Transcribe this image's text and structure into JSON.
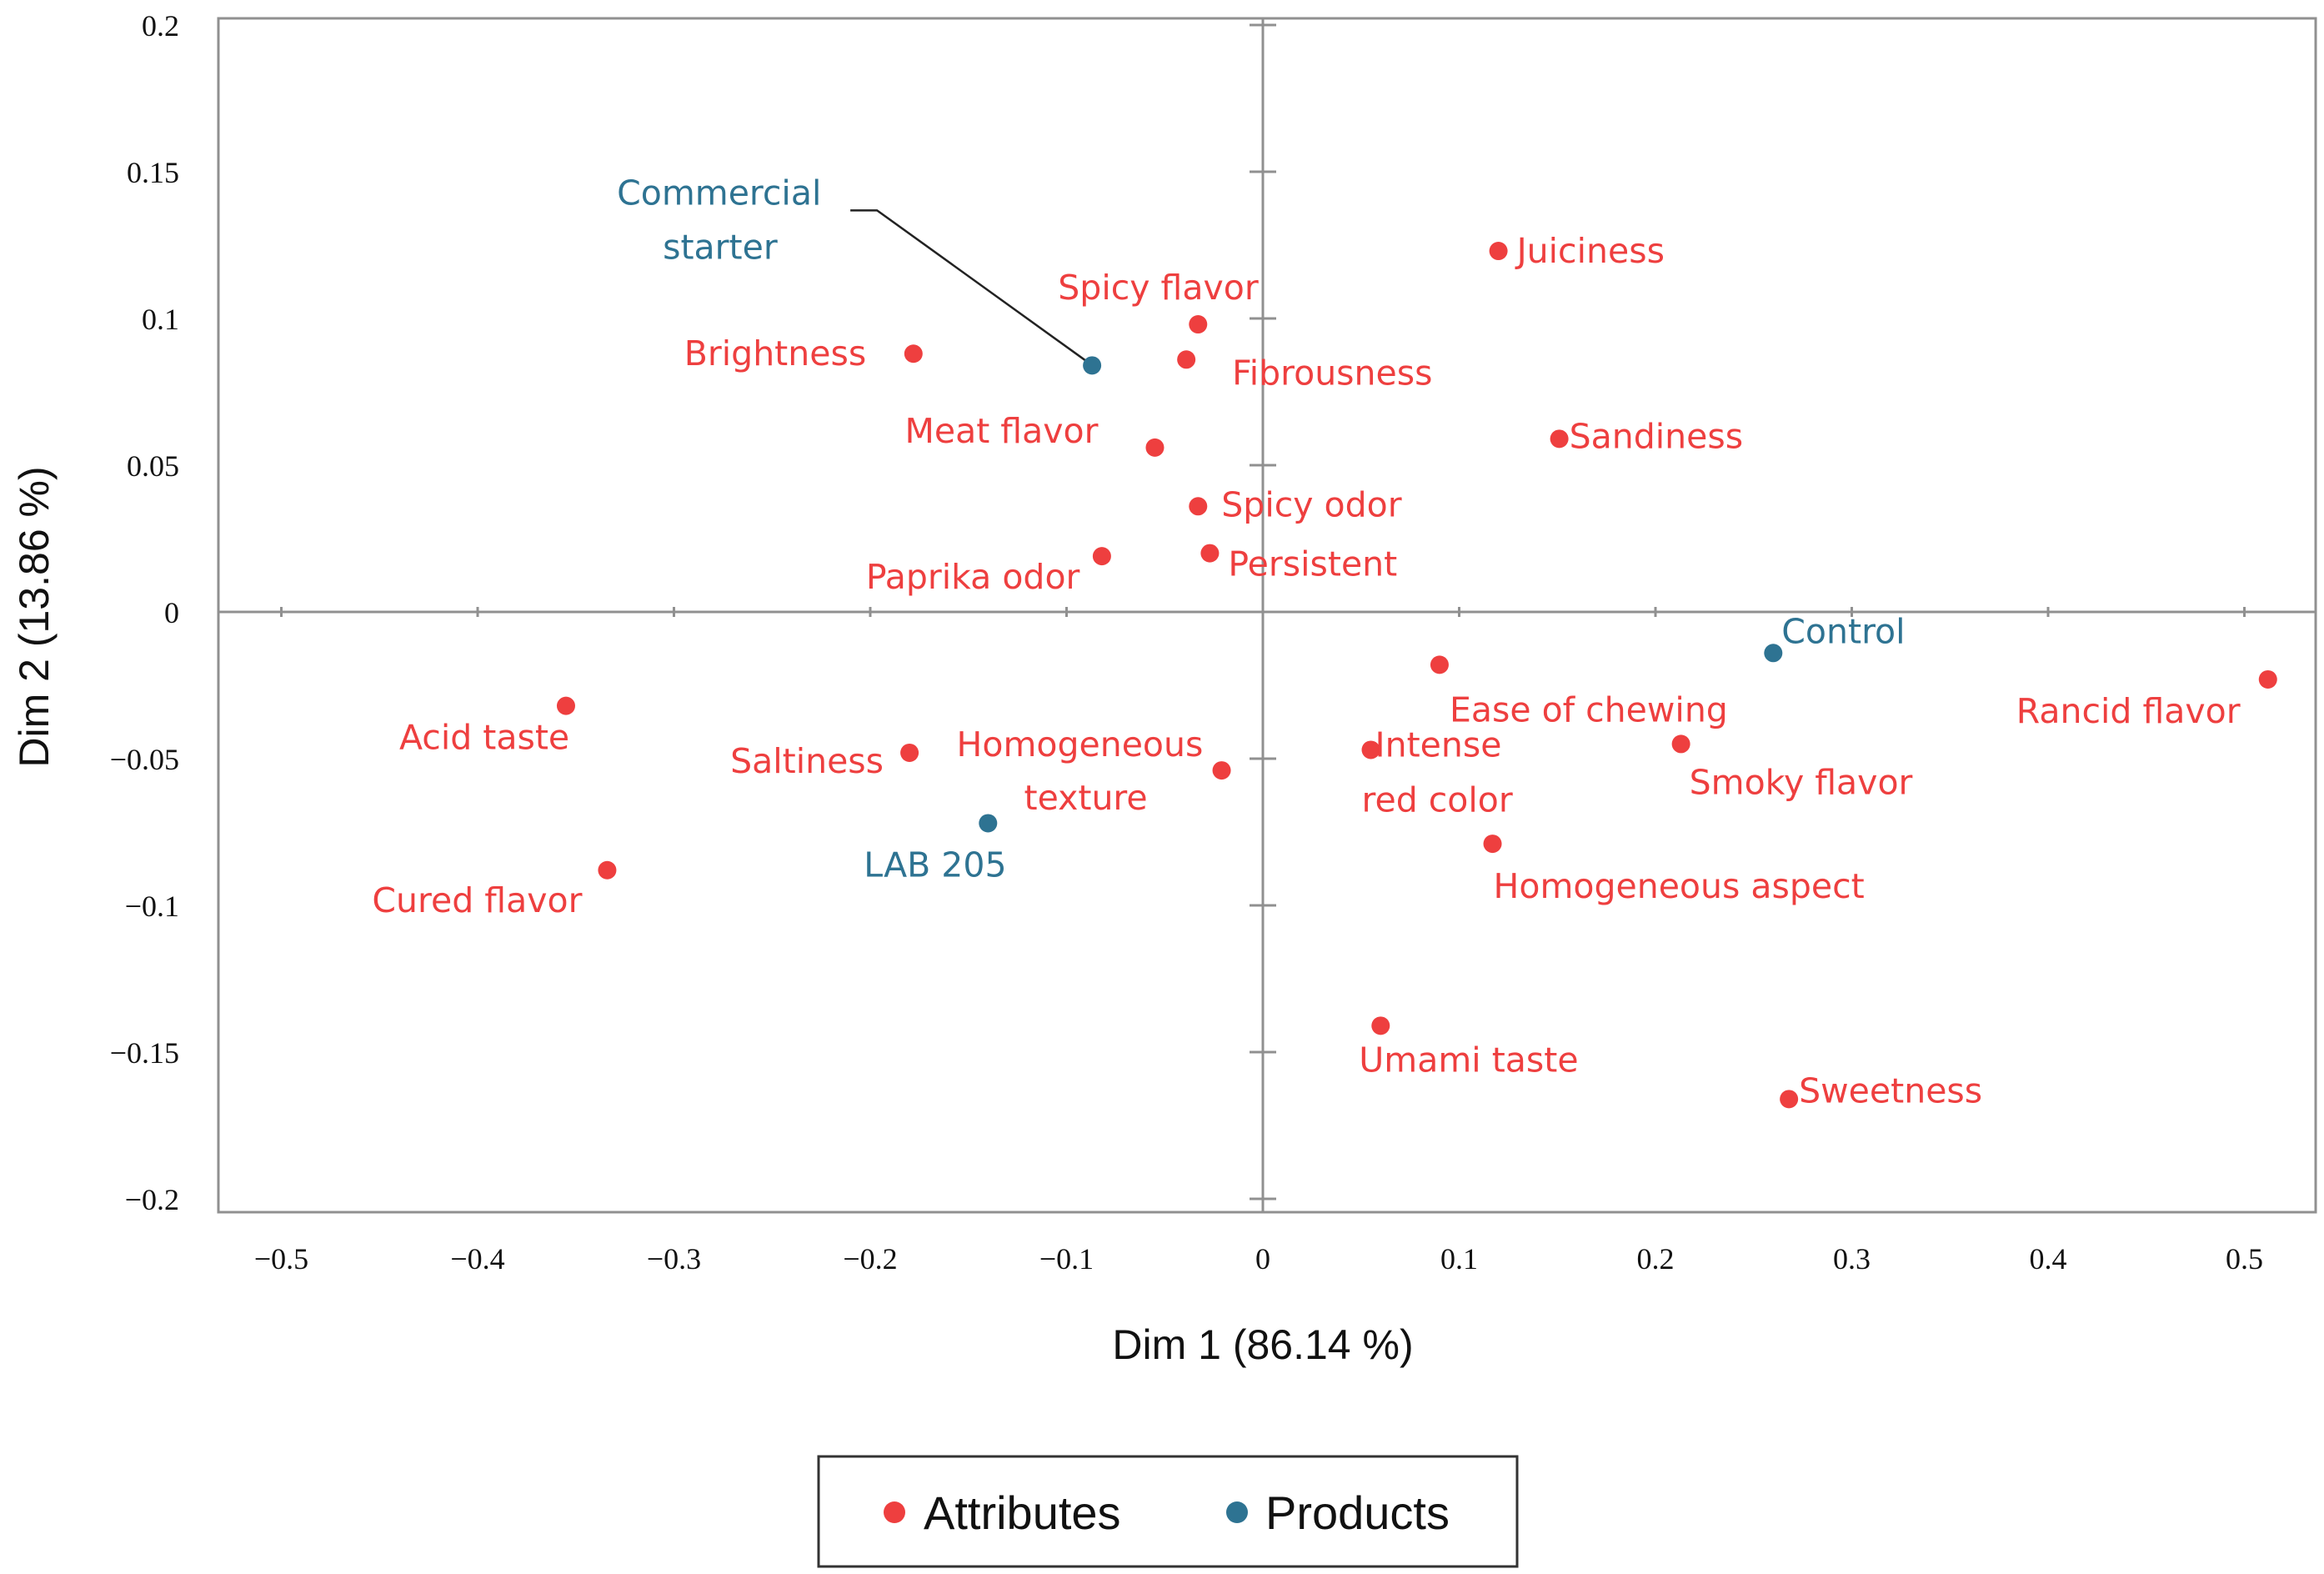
{
  "chart_data": {
    "type": "scatter",
    "xlabel": "Dim 1 (86.14 %)",
    "ylabel": "Dim 2 (13.86 %)",
    "xlim": [
      -0.52,
      0.52
    ],
    "ylim": [
      -0.21,
      0.205
    ],
    "x_ticks": [
      -0.5,
      -0.4,
      -0.3,
      -0.2,
      -0.1,
      0,
      0.1,
      0.2,
      0.3,
      0.4,
      0.5
    ],
    "x_tick_labels": [
      "−0.5",
      "−0.4",
      "−0.3",
      "−0.2",
      "−0.1",
      "0",
      "0.1",
      "0.2",
      "0.3",
      "0.4",
      "0.5"
    ],
    "y_ticks": [
      0.2,
      0.15,
      0.1,
      0.05,
      0,
      -0.05,
      -0.1,
      -0.15,
      -0.2
    ],
    "y_tick_labels": [
      "0.2",
      "0.15",
      "0.1",
      "0.05",
      "0",
      "−0.05",
      "−0.1",
      "−0.15",
      "−0.2"
    ],
    "gridlines": false,
    "legend_position": "bottom-center",
    "colors": {
      "Attributes": "#ee3f3f",
      "Products": "#2e7392",
      "axis": "#909090",
      "frame": "#909090"
    },
    "series": [
      {
        "name": "Attributes",
        "points": [
          {
            "label": "Juiciness",
            "x": 0.12,
            "y": 0.123
          },
          {
            "label": "Spicy flavor",
            "x": -0.033,
            "y": 0.098
          },
          {
            "label": "Brightness",
            "x": -0.178,
            "y": 0.088
          },
          {
            "label": "Fibrousness",
            "x": -0.039,
            "y": 0.086
          },
          {
            "label": "Meat flavor",
            "x": -0.055,
            "y": 0.056
          },
          {
            "label": "Sandiness",
            "x": 0.151,
            "y": 0.059
          },
          {
            "label": "Spicy odor",
            "x": -0.033,
            "y": 0.036
          },
          {
            "label": "Persistent",
            "x": -0.027,
            "y": 0.02
          },
          {
            "label": "Paprika odor",
            "x": -0.082,
            "y": 0.019
          },
          {
            "label": "Ease of chewing",
            "x": 0.09,
            "y": -0.018
          },
          {
            "label": "Rancid flavor",
            "x": 0.512,
            "y": -0.023
          },
          {
            "label": "Acid taste",
            "x": -0.355,
            "y": -0.032
          },
          {
            "label": "Saltiness",
            "x": -0.18,
            "y": -0.048
          },
          {
            "label": "Homogeneous texture",
            "x": -0.021,
            "y": -0.054
          },
          {
            "label": "Intense red color",
            "x": 0.055,
            "y": -0.047
          },
          {
            "label": "Smoky flavor",
            "x": 0.213,
            "y": -0.045
          },
          {
            "label": "Homogeneous aspect",
            "x": 0.117,
            "y": -0.079
          },
          {
            "label": "Cured flavor",
            "x": -0.334,
            "y": -0.088
          },
          {
            "label": "Umami taste",
            "x": 0.06,
            "y": -0.141
          },
          {
            "label": "Sweetness",
            "x": 0.268,
            "y": -0.166
          }
        ]
      },
      {
        "name": "Products",
        "points": [
          {
            "label": "Commercial starter",
            "x": -0.087,
            "y": 0.084
          },
          {
            "label": "Control",
            "x": 0.26,
            "y": -0.014
          },
          {
            "label": "LAB 205",
            "x": -0.14,
            "y": -0.072
          }
        ]
      }
    ]
  }
}
